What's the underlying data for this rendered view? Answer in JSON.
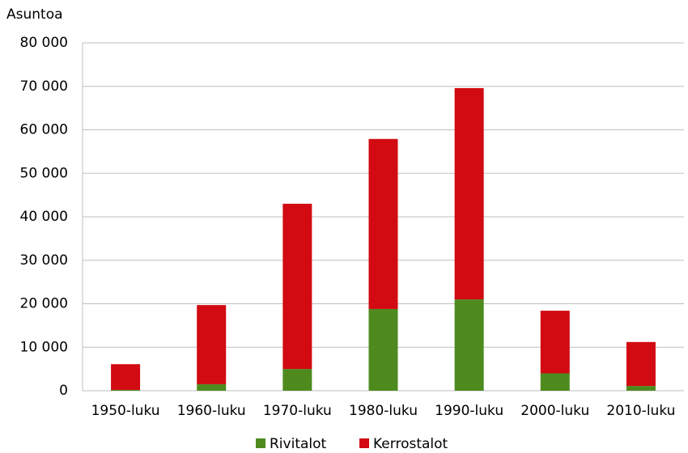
{
  "chart_data": {
    "type": "stacked_bar",
    "y_axis_label": "Asuntoa",
    "categories": [
      "1950-luku",
      "1960-luku",
      "1970-luku",
      "1980-luku",
      "1990-luku",
      "2000-luku",
      "2010-luku"
    ],
    "series": [
      {
        "name": "Rivitalot",
        "color": "#4e8a1e",
        "values": [
          200,
          1500,
          5000,
          18800,
          21000,
          4000,
          1100
        ]
      },
      {
        "name": "Kerrostalot",
        "color": "#d20a11",
        "values": [
          5900,
          18200,
          38000,
          39100,
          48600,
          14400,
          10100
        ]
      }
    ],
    "ylim": [
      0,
      80000
    ],
    "yticks": [
      0,
      {
        "value": 10000,
        "label": "10 000"
      },
      {
        "value": 20000,
        "label": "20 000"
      },
      {
        "value": 30000,
        "label": "30 000"
      },
      {
        "value": 40000,
        "label": "40 000"
      },
      {
        "value": 50000,
        "label": "50 000"
      },
      {
        "value": 60000,
        "label": "60 000"
      },
      {
        "value": 70000,
        "label": "70 000"
      },
      {
        "value": 80000,
        "label": "80 000"
      }
    ],
    "grid": true,
    "legend": "bottom"
  }
}
